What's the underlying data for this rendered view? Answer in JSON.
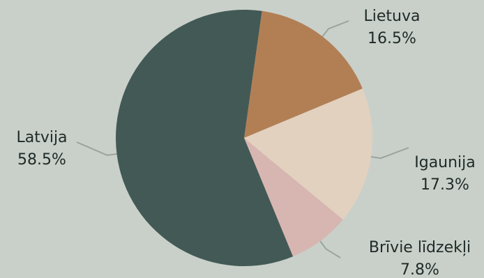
{
  "chart_data": {
    "type": "pie",
    "title": "",
    "colors": {
      "background": "#c9d0ca",
      "Latvija": "#435955",
      "Lietuva": "#b27f55",
      "Igaunija": "#e3d1bf",
      "Brīvie līdzekļi": "#d7b6b1",
      "leader": "#9aa39e"
    },
    "slices": [
      {
        "name": "Lietuva",
        "value": 16.5,
        "label": "16.5%"
      },
      {
        "name": "Igaunija",
        "value": 17.3,
        "label": "17.3%"
      },
      {
        "name": "Brīvie līdzekļi",
        "value": 7.8,
        "label": "7.8%"
      },
      {
        "name": "Latvija",
        "value": 58.5,
        "label": "58.5%"
      }
    ],
    "start_angle_deg": 8,
    "direction": "clockwise",
    "labels_outside": true,
    "legend": "none"
  }
}
